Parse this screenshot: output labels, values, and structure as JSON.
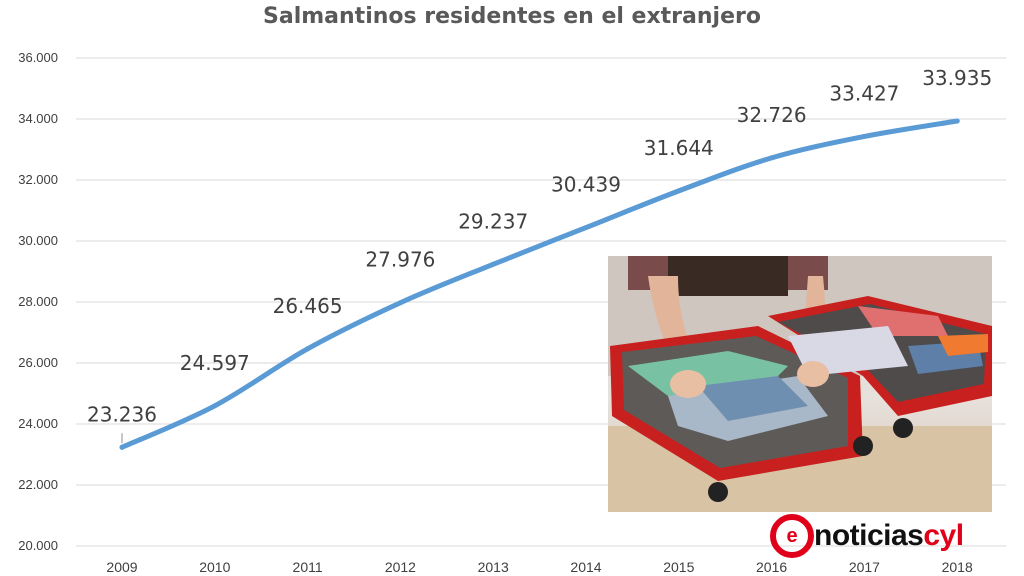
{
  "chart_data": {
    "type": "line",
    "title": "Salmantinos residentes en el extranjero",
    "xlabel": "",
    "ylabel": "",
    "categories": [
      "2009",
      "2010",
      "2011",
      "2012",
      "2013",
      "2014",
      "2015",
      "2016",
      "2017",
      "2018"
    ],
    "values": [
      23236,
      24597,
      26465,
      27976,
      29237,
      30439,
      31644,
      32726,
      33427,
      33935
    ],
    "value_labels": [
      "23.236",
      "24.597",
      "26.465",
      "27.976",
      "29.237",
      "30.439",
      "31.644",
      "32.726",
      "33.427",
      "33.935"
    ],
    "ylim": [
      20000,
      36000
    ],
    "y_ticks": [
      20000,
      22000,
      24000,
      26000,
      28000,
      30000,
      32000,
      34000,
      36000
    ],
    "y_tick_labels": [
      "20.000",
      "22.000",
      "24.000",
      "26.000",
      "28.000",
      "30.000",
      "32.000",
      "34.000",
      "36.000"
    ],
    "grid": true,
    "line_color": "#5b9bd5",
    "grid_color": "#d9d9d9"
  },
  "branding": {
    "logo_mark": "e",
    "logo_word_a": "noticias",
    "logo_word_b": "cyl"
  }
}
